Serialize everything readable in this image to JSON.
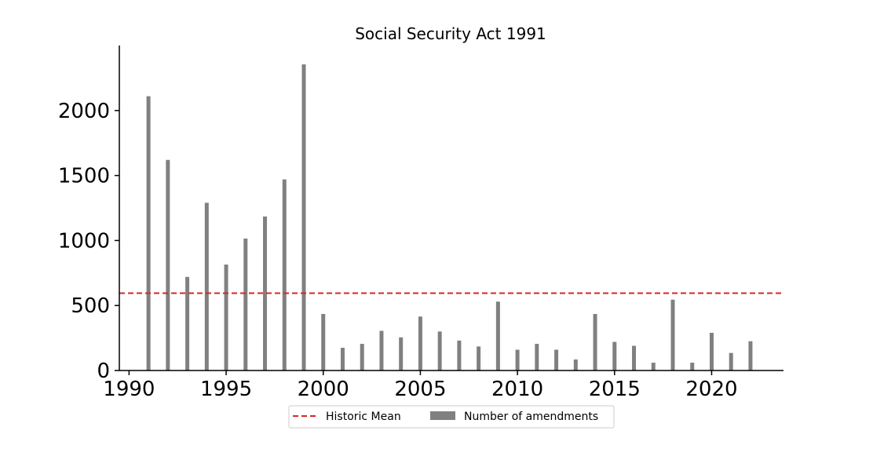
{
  "chart_data": {
    "type": "bar",
    "title": "Social Security Act 1991",
    "xlabel": "",
    "ylabel": "",
    "x": [
      1991,
      1992,
      1993,
      1994,
      1995,
      1996,
      1997,
      1998,
      1999,
      2000,
      2001,
      2002,
      2003,
      2004,
      2005,
      2006,
      2007,
      2008,
      2009,
      2010,
      2011,
      2012,
      2013,
      2014,
      2015,
      2016,
      2017,
      2018,
      2019,
      2020,
      2021,
      2022
    ],
    "series": [
      {
        "name": "Number of amendments",
        "color": "#808080",
        "values": [
          2110,
          1620,
          720,
          1290,
          815,
          1015,
          1185,
          1470,
          2355,
          435,
          175,
          205,
          305,
          255,
          415,
          300,
          230,
          185,
          530,
          160,
          205,
          160,
          85,
          435,
          220,
          190,
          60,
          545,
          60,
          290,
          135,
          225
        ]
      }
    ],
    "reference_lines": [
      {
        "name": "Historic Mean",
        "value": 595,
        "color": "#d62728",
        "style": "dashed"
      }
    ],
    "x_ticks": [
      "1990",
      "1995",
      "2000",
      "2005",
      "2010",
      "2015",
      "2020"
    ],
    "y_ticks": [
      "0",
      "500",
      "1000",
      "1500",
      "2000"
    ],
    "xlim": [
      1989.5,
      2023.7
    ],
    "ylim": [
      0,
      2500
    ],
    "legend": {
      "placement": "bottom-center",
      "entries": [
        "Historic Mean",
        "Number of amendments"
      ]
    },
    "grid": false
  }
}
